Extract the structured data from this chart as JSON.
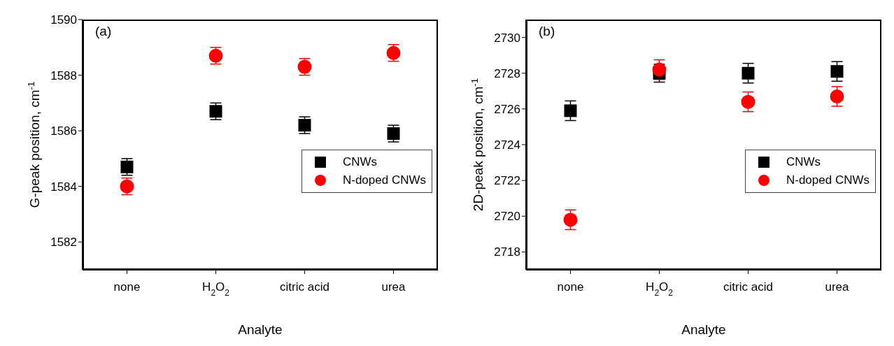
{
  "chart_data": [
    {
      "type": "scatter",
      "annotations": [
        "(a)"
      ],
      "xlabel": "Analyte",
      "ylabel": "G-peak position, cm$^{-1}$",
      "categories": [
        "none",
        "H$_{2}$O$_{2}$",
        "citric acid",
        "urea"
      ],
      "ylim": [
        1581,
        1590
      ],
      "yticks": [
        1582,
        1584,
        1586,
        1588,
        1590
      ],
      "legend": "right",
      "grid": false,
      "series": [
        {
          "name": "CNWs",
          "color": "#000000",
          "marker": "square",
          "values": [
            1584.7,
            1586.7,
            1586.2,
            1585.9
          ],
          "errors": [
            0.3,
            0.3,
            0.3,
            0.3
          ]
        },
        {
          "name": "N-doped CNWs",
          "color": "#ff0000",
          "marker": "circle",
          "values": [
            1584.0,
            1588.7,
            1588.3,
            1588.8
          ],
          "errors": [
            0.3,
            0.3,
            0.3,
            0.3
          ]
        }
      ]
    },
    {
      "type": "scatter",
      "annotations": [
        "(b)"
      ],
      "xlabel": "Analyte",
      "ylabel": "2D-peak position, cm$^{-1}$",
      "categories": [
        "none",
        "H$_{2}$O$_{2}$",
        "citric acid",
        "urea"
      ],
      "ylim": [
        2717,
        2731
      ],
      "yticks": [
        2718,
        2720,
        2722,
        2724,
        2726,
        2728,
        2730
      ],
      "legend": "right",
      "grid": false,
      "series": [
        {
          "name": "CNWs",
          "color": "#000000",
          "marker": "square",
          "values": [
            2725.9,
            2728.0,
            2728.0,
            2728.1
          ],
          "errors": [
            0.55,
            0.5,
            0.55,
            0.55
          ]
        },
        {
          "name": "N-doped CNWs",
          "color": "#ff0000",
          "marker": "circle",
          "values": [
            2719.8,
            2728.2,
            2726.4,
            2726.7
          ],
          "errors": [
            0.55,
            0.55,
            0.55,
            0.55
          ]
        }
      ]
    }
  ]
}
